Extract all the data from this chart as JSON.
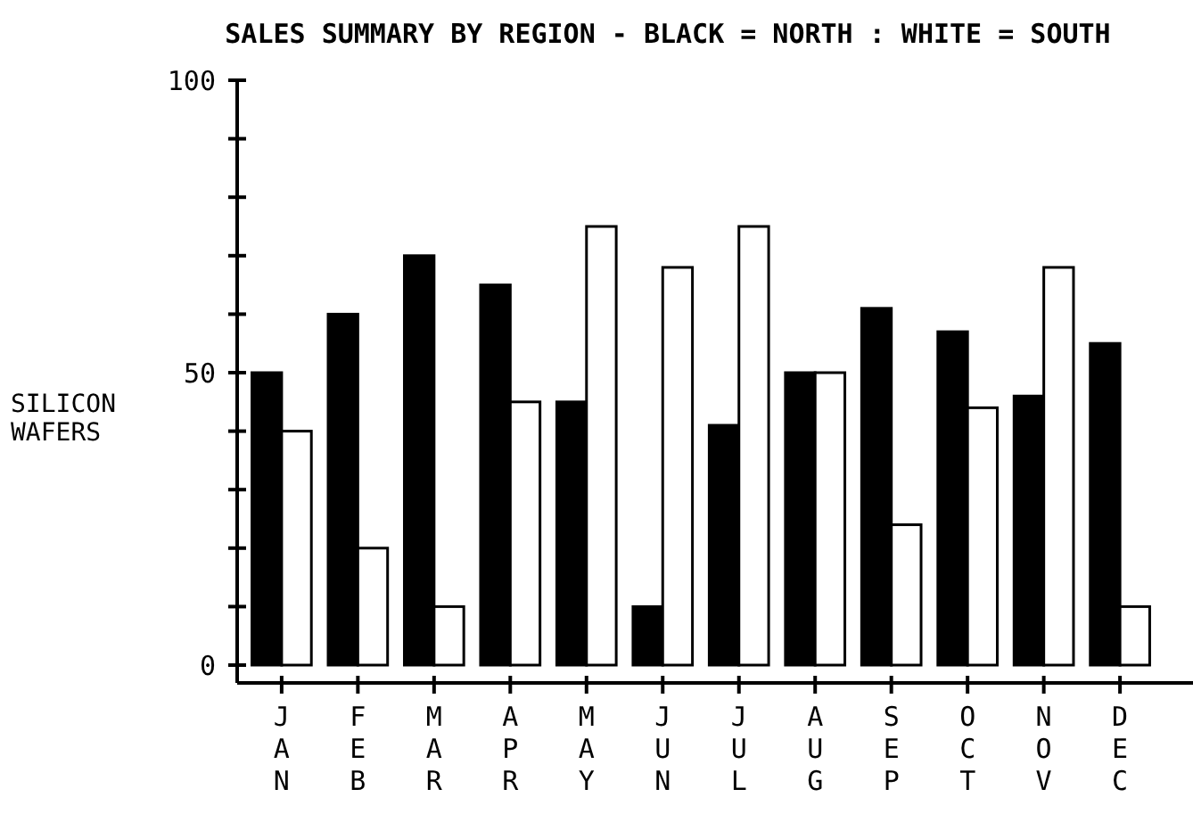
{
  "chart_data": {
    "type": "bar",
    "title": "SALES SUMMARY BY REGION - BLACK = NORTH : WHITE = SOUTH",
    "ylabel": "SILICON WAFERS",
    "categories": [
      "JAN",
      "FEB",
      "MAR",
      "APR",
      "MAY",
      "JUN",
      "JUL",
      "AUG",
      "SEP",
      "OCT",
      "NOV",
      "DEC"
    ],
    "series": [
      {
        "color": "#000000",
        "values": [
          50,
          60,
          70,
          65,
          45,
          10,
          41,
          50,
          61,
          57,
          46,
          55
        ]
      },
      {
        "color": "#ffffff",
        "values": [
          40,
          20,
          10,
          45,
          75,
          68,
          75,
          50,
          24,
          44,
          68,
          10
        ]
      }
    ],
    "ylim": [
      0,
      100
    ],
    "yticks": [
      0,
      {
        "value": 10,
        "label": null
      },
      {
        "value": 20,
        "label": null
      },
      {
        "value": 30,
        "label": null
      },
      {
        "value": 40,
        "label": null
      },
      50,
      {
        "value": 60,
        "label": null
      },
      {
        "value": 70,
        "label": null
      },
      {
        "value": 80,
        "label": null
      },
      {
        "value": 90,
        "label": null
      },
      100
    ],
    "grid": false
  }
}
